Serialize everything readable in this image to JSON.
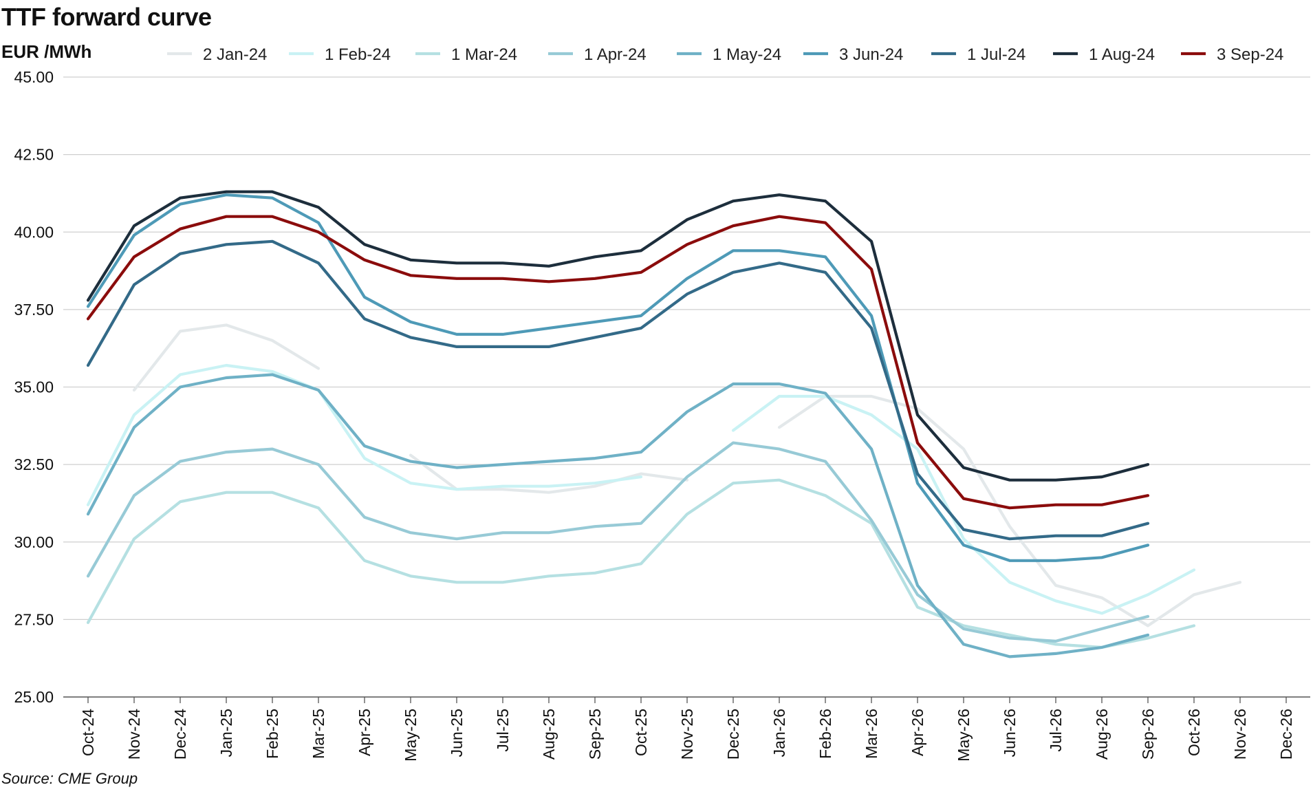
{
  "chart_data": {
    "type": "line",
    "title": "TTF forward curve",
    "ylabel": "EUR /MWh",
    "xlabel": "",
    "source": "Source: CME Group",
    "ylim": [
      25,
      45
    ],
    "yticks": [
      "25.00",
      "27.50",
      "30.00",
      "32.50",
      "35.00",
      "37.50",
      "40.00",
      "42.50",
      "45.00"
    ],
    "grid": true,
    "legend_position": "top",
    "categories": [
      "Oct-24",
      "Nov-24",
      "Dec-24",
      "Jan-25",
      "Feb-25",
      "Mar-25",
      "Apr-25",
      "May-25",
      "Jun-25",
      "Jul-25",
      "Aug-25",
      "Sep-25",
      "Oct-25",
      "Nov-25",
      "Dec-25",
      "Jan-26",
      "Feb-26",
      "Mar-26",
      "Apr-26",
      "May-26",
      "Jun-26",
      "Jul-26",
      "Aug-26",
      "Sep-26",
      "Oct-26",
      "Nov-26",
      "Dec-26"
    ],
    "series": [
      {
        "name": "2 Jan-24",
        "color": "#e3e8ea",
        "values": [
          null,
          34.9,
          36.8,
          37.0,
          36.5,
          35.6,
          null,
          32.8,
          31.7,
          31.7,
          31.6,
          31.8,
          32.2,
          32.0,
          null,
          33.7,
          34.7,
          34.7,
          34.3,
          33.0,
          30.5,
          28.6,
          28.2,
          27.3,
          28.3,
          28.7,
          null
        ]
      },
      {
        "name": "1 Feb-24",
        "color": "#c9f2f4",
        "values": [
          31.2,
          34.1,
          35.4,
          35.7,
          35.5,
          34.9,
          32.7,
          31.9,
          31.7,
          31.8,
          31.8,
          31.9,
          32.1,
          null,
          33.6,
          34.7,
          34.7,
          34.1,
          33.0,
          30.1,
          28.7,
          28.1,
          27.7,
          28.3,
          29.1,
          null,
          null
        ]
      },
      {
        "name": "1 Mar-24",
        "color": "#b5e0e2",
        "values": [
          27.4,
          30.1,
          31.3,
          31.6,
          31.6,
          31.1,
          29.4,
          28.9,
          28.7,
          28.7,
          28.9,
          29.0,
          29.3,
          30.9,
          31.9,
          32.0,
          31.5,
          30.6,
          27.9,
          27.3,
          27.0,
          26.7,
          26.6,
          26.9,
          27.3,
          null,
          null
        ]
      },
      {
        "name": "1 Apr-24",
        "color": "#97cad6",
        "values": [
          28.9,
          31.5,
          32.6,
          32.9,
          33.0,
          32.5,
          30.8,
          30.3,
          30.1,
          30.3,
          30.3,
          30.5,
          30.6,
          32.1,
          33.2,
          33.0,
          32.6,
          30.7,
          28.3,
          27.2,
          26.9,
          26.8,
          27.2,
          27.6,
          null,
          null,
          null
        ]
      },
      {
        "name": "1 May-24",
        "color": "#6fb1c6",
        "values": [
          30.9,
          33.7,
          35.0,
          35.3,
          35.4,
          34.9,
          33.1,
          32.6,
          32.4,
          32.5,
          32.6,
          32.7,
          32.9,
          34.2,
          35.1,
          35.1,
          34.8,
          33.0,
          28.6,
          26.7,
          26.3,
          26.4,
          26.6,
          27.0,
          null,
          null,
          null
        ]
      },
      {
        "name": "3 Jun-24",
        "color": "#4e9ab7",
        "values": [
          37.6,
          39.9,
          40.9,
          41.2,
          41.1,
          40.3,
          37.9,
          37.1,
          36.7,
          36.7,
          36.9,
          37.1,
          37.3,
          38.5,
          39.4,
          39.4,
          39.2,
          37.3,
          31.9,
          29.9,
          29.4,
          29.4,
          29.5,
          29.9,
          null,
          null,
          null
        ]
      },
      {
        "name": "1 Jul-24",
        "color": "#336a88",
        "values": [
          35.7,
          38.3,
          39.3,
          39.6,
          39.7,
          39.0,
          37.2,
          36.6,
          36.3,
          36.3,
          36.3,
          36.6,
          36.9,
          38.0,
          38.7,
          39.0,
          38.7,
          36.9,
          32.2,
          30.4,
          30.1,
          30.2,
          30.2,
          30.6,
          null,
          null,
          null
        ]
      },
      {
        "name": "1 Aug-24",
        "color": "#1d2e3c",
        "values": [
          37.8,
          40.2,
          41.1,
          41.3,
          41.3,
          40.8,
          39.6,
          39.1,
          39.0,
          39.0,
          38.9,
          39.2,
          39.4,
          40.4,
          41.0,
          41.2,
          41.0,
          39.7,
          34.1,
          32.4,
          32.0,
          32.0,
          32.1,
          32.5,
          null,
          null,
          null
        ]
      },
      {
        "name": "3 Sep-24",
        "color": "#8b0c0c",
        "values": [
          37.2,
          39.2,
          40.1,
          40.5,
          40.5,
          40.0,
          39.1,
          38.6,
          38.5,
          38.5,
          38.4,
          38.5,
          38.7,
          39.6,
          40.2,
          40.5,
          40.3,
          38.8,
          33.2,
          31.4,
          31.1,
          31.2,
          31.2,
          31.5,
          null,
          null,
          null
        ]
      }
    ]
  }
}
